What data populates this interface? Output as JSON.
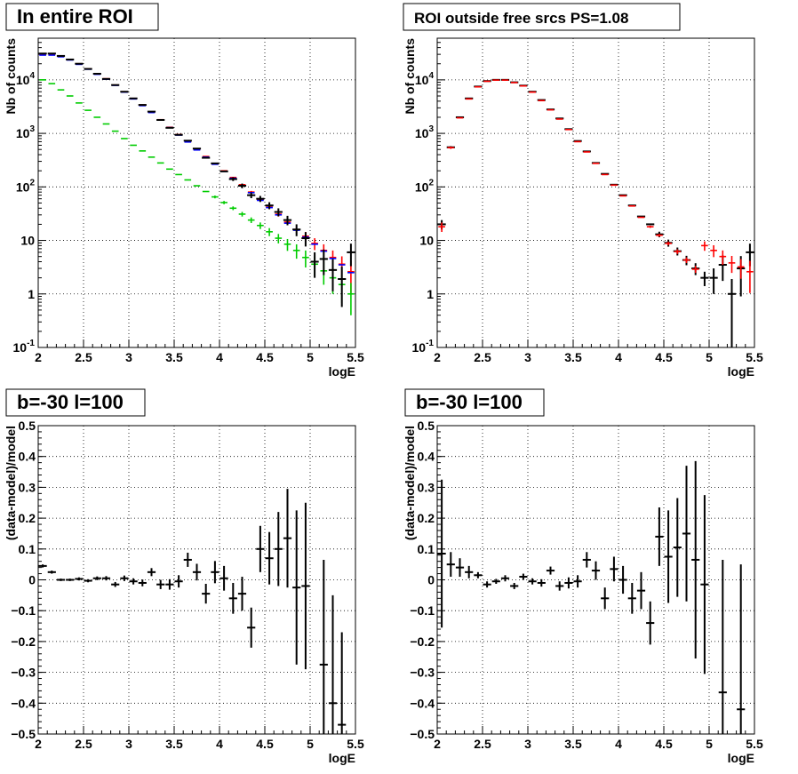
{
  "chart_data": [
    {
      "type": "scatter",
      "title": "In entire ROI",
      "xlabel": "logE",
      "ylabel": "Nb of counts",
      "xlim": [
        2,
        5.5
      ],
      "ylim": [
        0.1,
        60000
      ],
      "yscale": "log",
      "xticks": [
        "2",
        "2.5",
        "3",
        "3.5",
        "4",
        "4.5",
        "5",
        "5.5"
      ],
      "yticks": [
        {
          "base": "10",
          "exp": "-1"
        },
        {
          "base": "1",
          "exp": ""
        },
        {
          "base": "10",
          "exp": ""
        },
        {
          "base": "10",
          "exp": "2"
        },
        {
          "base": "10",
          "exp": "3"
        },
        {
          "base": "10",
          "exp": "4"
        }
      ],
      "grid": true,
      "x": [
        2.05,
        2.15,
        2.25,
        2.35,
        2.45,
        2.55,
        2.65,
        2.75,
        2.85,
        2.95,
        3.05,
        3.15,
        3.25,
        3.35,
        3.45,
        3.55,
        3.65,
        3.75,
        3.85,
        3.95,
        4.05,
        4.15,
        4.25,
        4.35,
        4.45,
        4.55,
        4.65,
        4.75,
        4.85,
        4.95,
        5.05,
        5.15,
        5.25,
        5.35,
        5.45
      ],
      "series": [
        {
          "color": "#ff0000",
          "kind": "model",
          "values": [
            30000,
            30000,
            28000,
            24000,
            20000,
            16000,
            13000,
            10500,
            8000,
            6000,
            4500,
            3400,
            2500,
            1800,
            1300,
            950,
            700,
            500,
            370,
            270,
            200,
            150,
            110,
            80,
            58,
            42,
            31,
            22,
            16,
            12,
            8.8,
            6.5,
            4.8,
            3.6,
            2.6
          ],
          "err_frac": [
            0,
            0,
            0,
            0,
            0,
            0,
            0,
            0,
            0,
            0,
            0,
            0,
            0,
            0,
            0,
            0,
            0,
            0,
            0,
            0,
            0,
            0,
            0,
            0.05,
            0.06,
            0.08,
            0.1,
            0.12,
            0.15,
            0.2,
            0.25,
            0.3,
            0.35,
            0.4,
            0.6
          ]
        },
        {
          "color": "#0000ff",
          "kind": "model",
          "values": [
            29000,
            29000,
            27000,
            23500,
            19500,
            15800,
            12700,
            10300,
            7900,
            5900,
            4400,
            3300,
            2450,
            1780,
            1280,
            930,
            690,
            490,
            360,
            265,
            195,
            145,
            105,
            78,
            56,
            41,
            30,
            21,
            15.5,
            11.5,
            8.5,
            6.3,
            4.6,
            3.5,
            2.5
          ],
          "err_frac": [
            0,
            0,
            0,
            0,
            0,
            0,
            0,
            0,
            0,
            0,
            0,
            0,
            0,
            0,
            0,
            0,
            0,
            0,
            0,
            0,
            0,
            0,
            0,
            0,
            0,
            0,
            0,
            0,
            0,
            0,
            0,
            0,
            0,
            0,
            0
          ]
        },
        {
          "color": "#00cc00",
          "kind": "model",
          "values": [
            10000,
            8500,
            6500,
            5000,
            3700,
            2700,
            2000,
            1500,
            1100,
            800,
            600,
            470,
            360,
            280,
            215,
            170,
            135,
            105,
            82,
            65,
            51,
            40,
            31,
            24,
            19,
            14.5,
            11,
            8.5,
            6.5,
            4.8,
            3.6,
            2.7,
            2.0,
            1.5,
            1.0
          ],
          "err_frac": [
            0,
            0,
            0,
            0,
            0,
            0,
            0,
            0,
            0,
            0,
            0,
            0,
            0,
            0,
            0,
            0,
            0,
            0,
            0,
            0.06,
            0.07,
            0.08,
            0.1,
            0.12,
            0.14,
            0.17,
            0.2,
            0.25,
            0.3,
            0.35,
            0.4,
            0.45,
            0.5,
            0.55,
            0.6
          ]
        },
        {
          "color": "#000000",
          "kind": "data",
          "values": [
            31000,
            31000,
            28000,
            24000,
            20000,
            16000,
            13000,
            10400,
            8000,
            6000,
            4500,
            3400,
            2550,
            1780,
            1270,
            940,
            730,
            520,
            350,
            275,
            195,
            140,
            105,
            70,
            60,
            45,
            34,
            24,
            16,
            11,
            4.0,
            4.5,
            2.8,
            1.9,
            6.0
          ],
          "err_frac": [
            0,
            0,
            0,
            0,
            0,
            0,
            0,
            0,
            0,
            0,
            0,
            0,
            0,
            0,
            0,
            0,
            0,
            0,
            0,
            0,
            0,
            0.08,
            0.1,
            0.12,
            0.13,
            0.15,
            0.17,
            0.2,
            0.25,
            0.3,
            0.5,
            0.5,
            0.6,
            0.7,
            0.45
          ]
        }
      ]
    },
    {
      "type": "scatter",
      "title": "ROI outside free srcs PS=1.08",
      "xlabel": "logE",
      "ylabel": "Nb of counts",
      "xlim": [
        2,
        5.5
      ],
      "ylim": [
        0.1,
        60000
      ],
      "yscale": "log",
      "xticks": [
        "2",
        "2.5",
        "3",
        "3.5",
        "4",
        "4.5",
        "5",
        "5.5"
      ],
      "yticks": [
        {
          "base": "10",
          "exp": "-1"
        },
        {
          "base": "1",
          "exp": ""
        },
        {
          "base": "10",
          "exp": ""
        },
        {
          "base": "10",
          "exp": "2"
        },
        {
          "base": "10",
          "exp": "3"
        },
        {
          "base": "10",
          "exp": "4"
        }
      ],
      "grid": true,
      "x": [
        2.05,
        2.15,
        2.25,
        2.35,
        2.45,
        2.55,
        2.65,
        2.75,
        2.85,
        2.95,
        3.05,
        3.15,
        3.25,
        3.35,
        3.45,
        3.55,
        3.65,
        3.75,
        3.85,
        3.95,
        4.05,
        4.15,
        4.25,
        4.35,
        4.45,
        4.55,
        4.65,
        4.75,
        4.85,
        4.95,
        5.05,
        5.15,
        5.25,
        5.35,
        5.45
      ],
      "series": [
        {
          "color": "#000000",
          "kind": "data",
          "values": [
            20,
            550,
            2000,
            4500,
            7500,
            9500,
            10000,
            10000,
            9000,
            7800,
            6000,
            4200,
            2800,
            1900,
            1200,
            720,
            460,
            280,
            175,
            110,
            70,
            45,
            28,
            20,
            13,
            9,
            6.3,
            4.3,
            3.0,
            2.0,
            2.0,
            3.5,
            1.0,
            3.0,
            6.0
          ],
          "err_frac": [
            0.2,
            0.05,
            0,
            0,
            0,
            0,
            0,
            0,
            0,
            0,
            0,
            0,
            0,
            0,
            0,
            0,
            0,
            0,
            0,
            0,
            0,
            0,
            0,
            0,
            0.12,
            0.15,
            0.17,
            0.2,
            0.25,
            0.3,
            0.5,
            0.5,
            0.9,
            0.7,
            0.45
          ]
        },
        {
          "color": "#ff0000",
          "kind": "model",
          "values": [
            18,
            540,
            1950,
            4400,
            7400,
            9400,
            9900,
            9900,
            8900,
            7700,
            5900,
            4100,
            2750,
            1850,
            1180,
            700,
            450,
            275,
            170,
            108,
            68,
            44,
            27,
            18,
            12.5,
            8.8,
            6.2,
            4.3,
            2.9,
            8.0,
            6.5,
            5.0,
            3.8,
            3.2,
            2.6
          ],
          "err_frac": [
            0.2,
            0.05,
            0,
            0,
            0,
            0,
            0,
            0,
            0,
            0,
            0,
            0,
            0,
            0,
            0,
            0,
            0,
            0,
            0,
            0,
            0,
            0,
            0,
            0.05,
            0.06,
            0.08,
            0.1,
            0.12,
            0.15,
            0.2,
            0.25,
            0.3,
            0.35,
            0.4,
            0.6
          ]
        }
      ]
    },
    {
      "type": "scatter",
      "title": "b=-30 l=100",
      "xlabel": "logE",
      "ylabel": "(data-model)/model",
      "xlim": [
        2,
        5.5
      ],
      "ylim": [
        -0.5,
        0.5
      ],
      "yscale": "linear",
      "xticks": [
        "2",
        "2.5",
        "3",
        "3.5",
        "4",
        "4.5",
        "5",
        "5.5"
      ],
      "yticks": [
        "−0.5",
        "−0.4",
        "−0.3",
        "−0.2",
        "−0.1",
        "0",
        "0.1",
        "0.2",
        "0.3",
        "0.4",
        "0.5"
      ],
      "grid": true,
      "x": [
        2.05,
        2.15,
        2.25,
        2.35,
        2.45,
        2.55,
        2.65,
        2.75,
        2.85,
        2.95,
        3.05,
        3.15,
        3.25,
        3.35,
        3.45,
        3.55,
        3.65,
        3.75,
        3.85,
        3.95,
        4.05,
        4.15,
        4.25,
        4.35,
        4.45,
        4.55,
        4.65,
        4.75,
        4.85,
        4.95,
        5.05,
        5.15,
        5.25,
        5.35,
        5.45
      ],
      "series": [
        {
          "color": "#000000",
          "kind": "data",
          "values": [
            0.045,
            0.025,
            0.0,
            0.0,
            0.003,
            -0.003,
            0.005,
            0.005,
            -0.015,
            0.005,
            -0.005,
            -0.01,
            0.025,
            -0.015,
            -0.015,
            -0.005,
            0.065,
            0.025,
            -0.045,
            0.025,
            0.005,
            -0.06,
            -0.045,
            -0.155,
            0.1,
            0.07,
            0.1,
            0.135,
            -0.025,
            -0.02,
            null,
            -0.275,
            -0.4,
            -0.47,
            null
          ],
          "errors": [
            0.005,
            0.005,
            0.004,
            0.004,
            0.005,
            0.005,
            0.006,
            0.007,
            0.008,
            0.009,
            0.01,
            0.011,
            0.013,
            0.015,
            0.017,
            0.02,
            0.023,
            0.027,
            0.032,
            0.036,
            0.04,
            0.05,
            0.055,
            0.065,
            0.075,
            0.085,
            0.12,
            0.16,
            0.25,
            0.27,
            0,
            0.34,
            0.35,
            0.3,
            0
          ]
        }
      ]
    },
    {
      "type": "scatter",
      "title": "b=-30 l=100",
      "xlabel": "logE",
      "ylabel": "(data-model)/model",
      "xlim": [
        2,
        5.5
      ],
      "ylim": [
        -0.5,
        0.5
      ],
      "yscale": "linear",
      "xticks": [
        "2",
        "2.5",
        "3",
        "3.5",
        "4",
        "4.5",
        "5",
        "5.5"
      ],
      "yticks": [
        "−0.5",
        "−0.4",
        "−0.3",
        "−0.2",
        "−0.1",
        "0",
        "0.1",
        "0.2",
        "0.3",
        "0.4",
        "0.5"
      ],
      "grid": true,
      "x": [
        2.05,
        2.15,
        2.25,
        2.35,
        2.45,
        2.55,
        2.65,
        2.75,
        2.85,
        2.95,
        3.05,
        3.15,
        3.25,
        3.35,
        3.45,
        3.55,
        3.65,
        3.75,
        3.85,
        3.95,
        4.05,
        4.15,
        4.25,
        4.35,
        4.45,
        4.55,
        4.65,
        4.75,
        4.85,
        4.95,
        5.05,
        5.15,
        5.25,
        5.35,
        5.45
      ],
      "series": [
        {
          "color": "#000000",
          "kind": "data",
          "values": [
            0.085,
            0.05,
            0.04,
            0.025,
            0.015,
            -0.015,
            -0.005,
            0.005,
            -0.02,
            0.01,
            -0.005,
            -0.01,
            0.03,
            -0.02,
            -0.01,
            -0.005,
            0.065,
            0.03,
            -0.06,
            0.035,
            0.0,
            -0.06,
            -0.035,
            -0.14,
            0.14,
            0.075,
            0.105,
            0.15,
            0.065,
            -0.015,
            null,
            -0.365,
            null,
            -0.42,
            null
          ],
          "errors": [
            0.24,
            0.04,
            0.03,
            0.02,
            0.01,
            0.01,
            0.008,
            0.01,
            0.01,
            0.01,
            0.01,
            0.012,
            0.013,
            0.015,
            0.018,
            0.02,
            0.025,
            0.03,
            0.035,
            0.04,
            0.045,
            0.05,
            0.06,
            0.07,
            0.095,
            0.15,
            0.16,
            0.22,
            0.32,
            0.29,
            0,
            0.43,
            0,
            0.47,
            0
          ]
        }
      ]
    }
  ]
}
